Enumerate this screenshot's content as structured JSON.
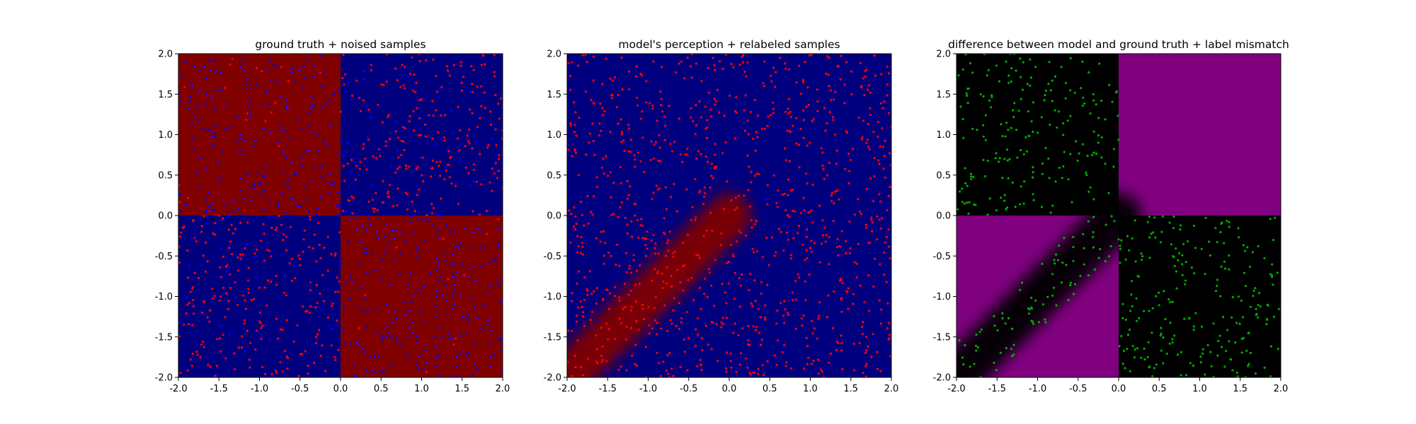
{
  "figure": {
    "background": "#ffffff"
  },
  "chart_data": [
    {
      "type": "heatmap",
      "title": "ground truth + noised samples",
      "xlabel": "",
      "ylabel": "",
      "xlim": [
        -2.0,
        2.0
      ],
      "ylim": [
        -2.0,
        2.0
      ],
      "xticks": [
        "-2.0",
        "-1.5",
        "-1.0",
        "-0.5",
        "0.0",
        "0.5",
        "1.0",
        "1.5",
        "2.0"
      ],
      "yticks": [
        "-2.0",
        "-1.5",
        "-1.0",
        "-0.5",
        "0.0",
        "0.5",
        "1.0",
        "1.5",
        "2.0"
      ],
      "grid": false,
      "background_regions": [
        {
          "x": [
            -2.0,
            0.0
          ],
          "y": [
            0.0,
            2.0
          ],
          "color": "#800000"
        },
        {
          "x": [
            0.0,
            2.0
          ],
          "y": [
            0.0,
            2.0
          ],
          "color": "#00007f"
        },
        {
          "x": [
            -2.0,
            0.0
          ],
          "y": [
            -2.0,
            0.0
          ],
          "color": "#00007f"
        },
        {
          "x": [
            0.0,
            2.0
          ],
          "y": [
            -2.0,
            0.0
          ],
          "color": "#800000"
        }
      ],
      "scatter": {
        "count": 1000,
        "distribution": "uniform",
        "range": [
          -2.0,
          2.0
        ],
        "colors": {
          "x_times_y_positive": "#ff0000",
          "x_times_y_negative": "#0000ff"
        },
        "label_noise_fraction": 0.12
      }
    },
    {
      "type": "heatmap",
      "title": "model's perception + relabeled samples",
      "xlabel": "",
      "ylabel": "",
      "xlim": [
        -2.0,
        2.0
      ],
      "ylim": [
        -2.0,
        2.0
      ],
      "xticks": [
        "-2.0",
        "-1.5",
        "-1.0",
        "-0.5",
        "0.0",
        "0.5",
        "1.0",
        "1.5",
        "2.0"
      ],
      "yticks": [
        "-2.0",
        "-1.5",
        "-1.0",
        "-0.5",
        "0.0",
        "0.5",
        "1.0",
        "1.5",
        "2.0"
      ],
      "grid": false,
      "background": "#00007f",
      "diagonal_band": {
        "color": "#800000",
        "from": [
          -2.0,
          -2.0
        ],
        "to": [
          0.0,
          0.0
        ],
        "width_data": 0.55
      },
      "scatter": {
        "count": 1000,
        "distribution": "uniform",
        "range": [
          -2.0,
          2.0
        ],
        "colors": {
          "inside_band": "#ff0000",
          "outside_band": "#ff0000",
          "minority": "#0000ff"
        }
      }
    },
    {
      "type": "heatmap",
      "title": "difference between model and ground truth + label mismatch",
      "xlabel": "",
      "ylabel": "",
      "xlim": [
        -2.0,
        2.0
      ],
      "ylim": [
        -2.0,
        2.0
      ],
      "xticks": [
        "-2.0",
        "-1.5",
        "-1.0",
        "-0.5",
        "0.0",
        "0.5",
        "1.0",
        "1.5",
        "2.0"
      ],
      "yticks": [
        "-2.0",
        "-1.5",
        "-1.0",
        "-0.5",
        "0.0",
        "0.5",
        "1.0",
        "1.5",
        "2.0"
      ],
      "grid": false,
      "background_regions": [
        {
          "x": [
            -2.0,
            0.0
          ],
          "y": [
            0.0,
            2.0
          ],
          "color": "#000000"
        },
        {
          "x": [
            0.0,
            2.0
          ],
          "y": [
            0.0,
            2.0
          ],
          "color": "#800080"
        },
        {
          "x": [
            -2.0,
            0.0
          ],
          "y": [
            -2.0,
            0.0
          ],
          "color": "#800080"
        },
        {
          "x": [
            0.0,
            2.0
          ],
          "y": [
            -2.0,
            0.0
          ],
          "color": "#000000"
        }
      ],
      "diagonal_band": {
        "color": "#000000",
        "from": [
          -2.0,
          -2.0
        ],
        "to": [
          0.0,
          0.0
        ],
        "width_data": 0.55
      },
      "scatter": {
        "count": 520,
        "distribution": "uniform_on_black_regions",
        "range": [
          -2.0,
          2.0
        ],
        "colors": {
          "mismatch": "#00aa00"
        }
      }
    }
  ]
}
